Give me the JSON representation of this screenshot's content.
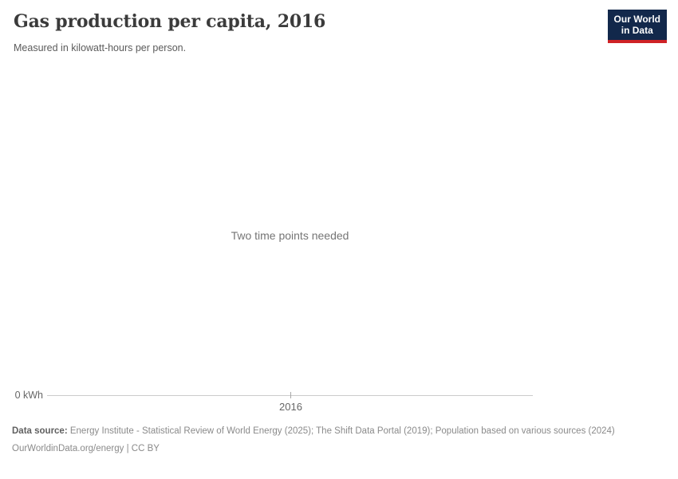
{
  "header": {
    "title": "Gas production per capita, 2016",
    "subtitle": "Measured in kilowatt-hours per person."
  },
  "logo": {
    "line1": "Our World",
    "line2": "in Data"
  },
  "chart": {
    "message": "Two time points needed",
    "y_axis_zero_label": "0 kWh",
    "x_tick_label": "2016"
  },
  "chart_data": {
    "type": "line",
    "title": "Gas production per capita, 2016",
    "subtitle": "Measured in kilowatt-hours per person.",
    "unit": "kilowatt-hours per person",
    "series": [],
    "annotations": [
      "Two time points needed"
    ],
    "x_ticks": [
      "2016"
    ],
    "y_ticks": [
      "0 kWh"
    ],
    "ylim": [
      0,
      0
    ],
    "grid": false,
    "legend": false,
    "note": "Empty chart: no data series plotted, only a message that two time points are needed."
  },
  "footer": {
    "source_label": "Data source:",
    "source_text": " Energy Institute - Statistical Review of World Energy (2025); The Shift Data Portal (2019); Population based on various sources (2024)",
    "credit": "OurWorldinData.org/energy | CC BY"
  },
  "colors": {
    "logo_bg": "#12284b",
    "logo_stripe": "#cf2226",
    "axis_line": "#cccccc",
    "title_text": "#3b3b3b",
    "muted_text": "#8a8a8a"
  }
}
